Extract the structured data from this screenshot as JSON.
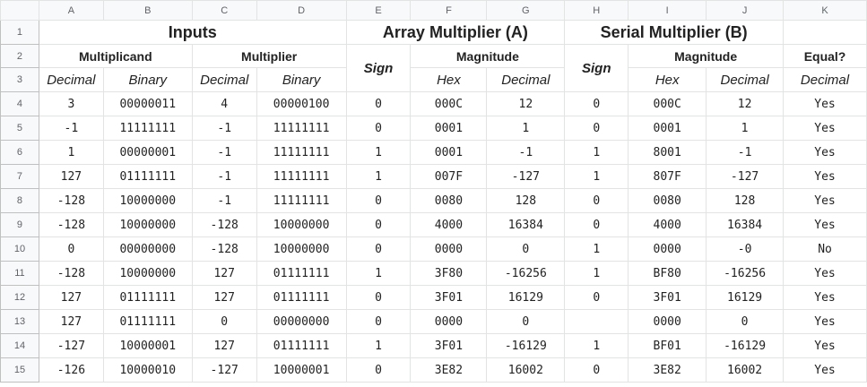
{
  "columns": [
    "A",
    "B",
    "C",
    "D",
    "E",
    "F",
    "G",
    "H",
    "I",
    "J",
    "K"
  ],
  "row_numbers": [
    "1",
    "2",
    "3",
    "4",
    "5",
    "6",
    "7",
    "8",
    "9",
    "10",
    "11",
    "12",
    "13",
    "14",
    "15"
  ],
  "headers": {
    "inputs": "Inputs",
    "array_multiplier": "Array Multiplier (A)",
    "serial_multiplier": "Serial Multiplier (B)",
    "multiplicand": "Multiplicand",
    "multiplier": "Multiplier",
    "sign_a": "Sign",
    "magnitude_a": "Magnitude",
    "sign_b": "Sign",
    "magnitude_b": "Magnitude",
    "equal": "Equal?",
    "row3": [
      "Decimal",
      "Binary",
      "Decimal",
      "Binary",
      "Hex",
      "Decimal",
      "Hex",
      "Decimal",
      "Decimal"
    ]
  },
  "rows": [
    [
      "3",
      "00000011",
      "4",
      "00000100",
      "0",
      "000C",
      "12",
      "0",
      "000C",
      "12",
      "Yes"
    ],
    [
      "-1",
      "11111111",
      "-1",
      "11111111",
      "0",
      "0001",
      "1",
      "0",
      "0001",
      "1",
      "Yes"
    ],
    [
      "1",
      "00000001",
      "-1",
      "11111111",
      "1",
      "0001",
      "-1",
      "1",
      "8001",
      "-1",
      "Yes"
    ],
    [
      "127",
      "01111111",
      "-1",
      "11111111",
      "1",
      "007F",
      "-127",
      "1",
      "807F",
      "-127",
      "Yes"
    ],
    [
      "-128",
      "10000000",
      "-1",
      "11111111",
      "0",
      "0080",
      "128",
      "0",
      "0080",
      "128",
      "Yes"
    ],
    [
      "-128",
      "10000000",
      "-128",
      "10000000",
      "0",
      "4000",
      "16384",
      "0",
      "4000",
      "16384",
      "Yes"
    ],
    [
      "0",
      "00000000",
      "-128",
      "10000000",
      "0",
      "0000",
      "0",
      "1",
      "0000",
      "-0",
      "No"
    ],
    [
      "-128",
      "10000000",
      "127",
      "01111111",
      "1",
      "3F80",
      "-16256",
      "1",
      "BF80",
      "-16256",
      "Yes"
    ],
    [
      "127",
      "01111111",
      "127",
      "01111111",
      "0",
      "3F01",
      "16129",
      "0",
      "3F01",
      "16129",
      "Yes"
    ],
    [
      "127",
      "01111111",
      "0",
      "00000000",
      "0",
      "0000",
      "0",
      "",
      "0000",
      "0",
      "Yes"
    ],
    [
      "-127",
      "10000001",
      "127",
      "01111111",
      "1",
      "3F01",
      "-16129",
      "1",
      "BF01",
      "-16129",
      "Yes"
    ],
    [
      "-126",
      "10000010",
      "-127",
      "10000001",
      "0",
      "3E82",
      "16002",
      "0",
      "3E82",
      "16002",
      "Yes"
    ]
  ]
}
